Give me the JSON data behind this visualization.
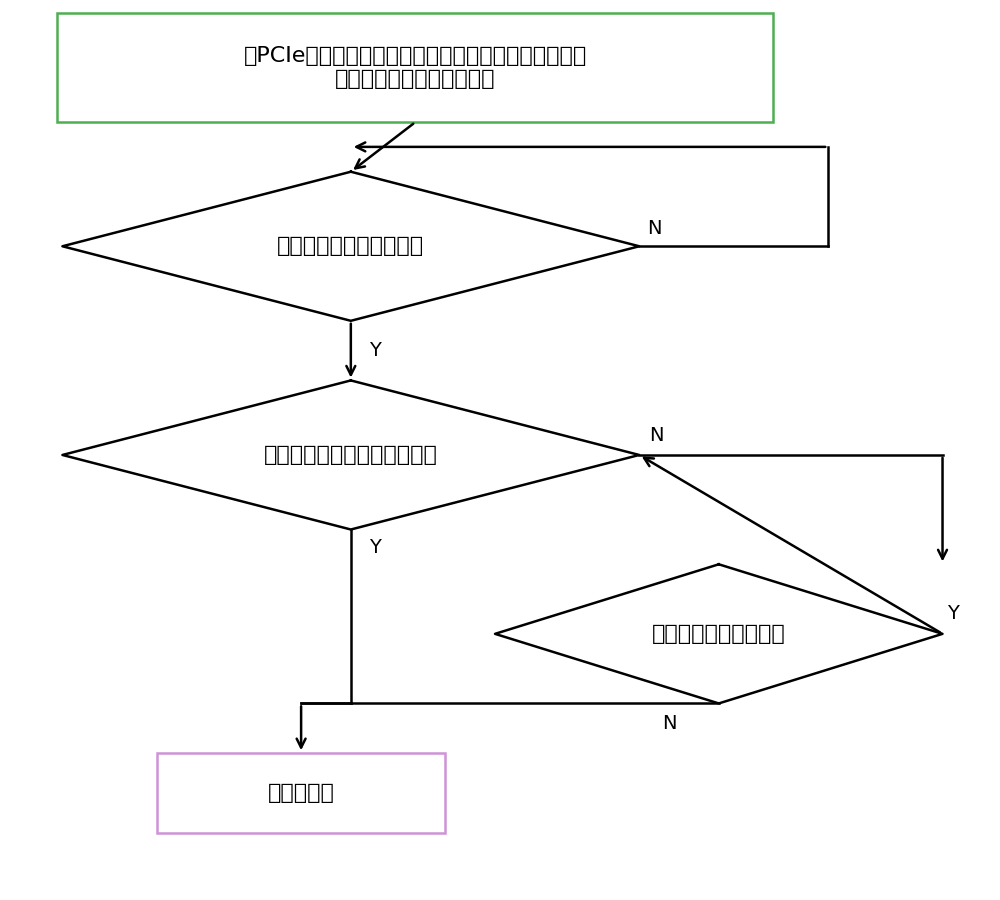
{
  "bg_color": "#ffffff",
  "line_color": "#000000",
  "box1_text": "在PCIe空间划分出管理区和资源池，资源池内包括若干\n连接发送端和接收端的信道",
  "box1_border_color": "#4CAF50",
  "diamond1_text": "是否有信道停止写入数据",
  "diamond2_text": "是否有强制释放该信道的请求",
  "diamond3_text": "该信道中是否还有数据",
  "box2_text": "释放该信道",
  "box2_border_color": "#CE93D8",
  "font_size": 16,
  "font_size_label": 14,
  "lw": 1.8
}
